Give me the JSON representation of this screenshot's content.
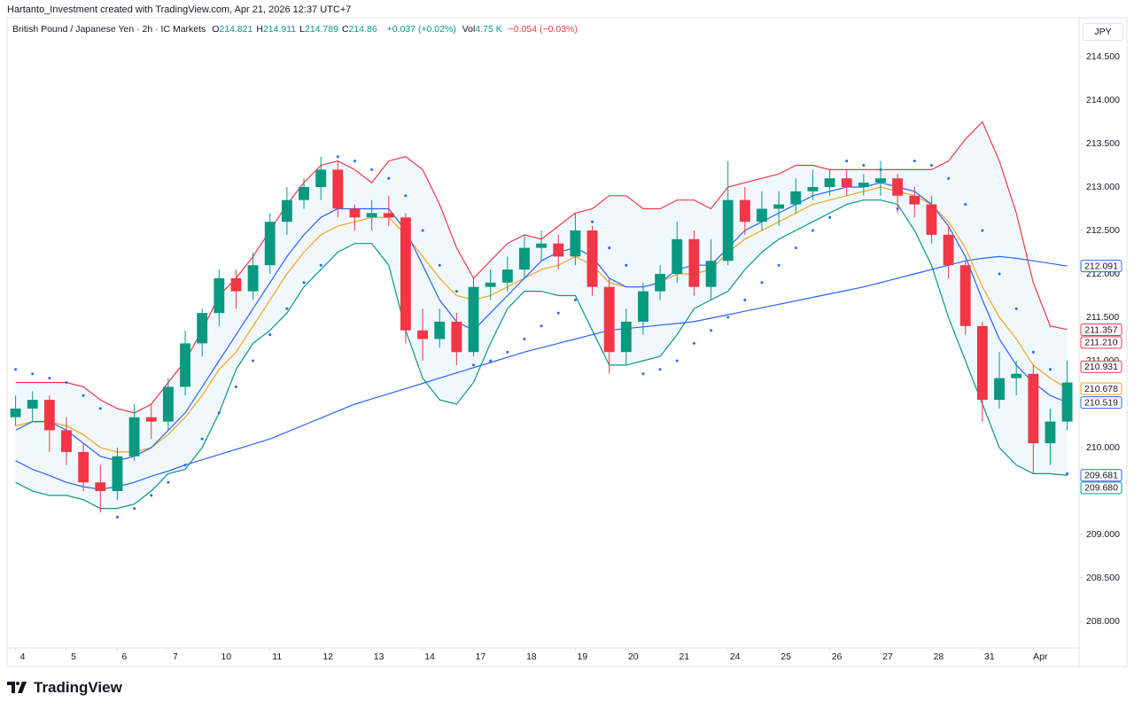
{
  "header": {
    "credit": "Hartanto_Investment created with TradingView.com, Apr 21, 2026 12:37 UTC+7",
    "symbol": "British Pound / Japanese Yen · 2h · IC Markets",
    "ohlc": [
      {
        "label": "O",
        "value": 214.821
      },
      {
        "label": "H",
        "value": 214.911
      },
      {
        "label": "L",
        "value": 214.789
      },
      {
        "label": "C",
        "value": 214.86
      }
    ],
    "change": "+0.037 (+0.02%)",
    "volume_label": "Vol",
    "volume": "4.75 K",
    "volume_change": "−0.054 (−0.03%)",
    "currency": "JPY",
    "brand": "TradingView"
  },
  "chart_data": {
    "type": "candlestick",
    "up_color": "#089981",
    "down_color": "#f23645",
    "band_fill": "#e3f2fd",
    "grid": false,
    "xlim": [
      -0.5,
      62.7
    ],
    "ylim": [
      207.5,
      214.7
    ],
    "xticks": [
      {
        "value": 0,
        "label": "4"
      },
      {
        "value": 3,
        "label": "5"
      },
      {
        "value": 6,
        "label": "6"
      },
      {
        "value": 9,
        "label": "7"
      },
      {
        "value": 12,
        "label": "10"
      },
      {
        "value": 15,
        "label": "11"
      },
      {
        "value": 18,
        "label": "12"
      },
      {
        "value": 21,
        "label": "13"
      },
      {
        "value": 24,
        "label": "14"
      },
      {
        "value": 27,
        "label": "17"
      },
      {
        "value": 30,
        "label": "18"
      },
      {
        "value": 33,
        "label": "19"
      },
      {
        "value": 36,
        "label": "20"
      },
      {
        "value": 39,
        "label": "21"
      },
      {
        "value": 42,
        "label": "24"
      },
      {
        "value": 45,
        "label": "25"
      },
      {
        "value": 48,
        "label": "26"
      },
      {
        "value": 51,
        "label": "27"
      },
      {
        "value": 54,
        "label": "28"
      },
      {
        "value": 57,
        "label": "31"
      },
      {
        "value": 60,
        "label": "Apr"
      }
    ],
    "yticks": [
      {
        "value": 208,
        "label": "208.000"
      },
      {
        "value": 208.5,
        "label": "208.500"
      },
      {
        "value": 209,
        "label": "209.000"
      },
      {
        "value": 209.5,
        "label": "209.500"
      },
      {
        "value": 210,
        "label": "210.000"
      },
      {
        "value": 210.5,
        "label": "210.500"
      },
      {
        "value": 211,
        "label": "211.000"
      },
      {
        "value": 211.5,
        "label": "211.500"
      },
      {
        "value": 212,
        "label": "212.000"
      },
      {
        "value": 212.5,
        "label": "212.500"
      },
      {
        "value": 213,
        "label": "213.000"
      },
      {
        "value": 213.5,
        "label": "213.500"
      },
      {
        "value": 214,
        "label": "214.000"
      },
      {
        "value": 214.5,
        "label": "214.500"
      }
    ],
    "x": [
      0,
      1,
      2,
      3,
      4,
      5,
      6,
      7,
      8,
      9,
      10,
      11,
      12,
      13,
      14,
      15,
      16,
      17,
      18,
      19,
      20,
      21,
      22,
      23,
      24,
      25,
      26,
      27,
      28,
      29,
      30,
      31,
      32,
      33,
      34,
      35,
      36,
      37,
      38,
      39,
      40,
      41,
      42,
      43,
      44,
      45,
      46,
      47,
      48,
      49,
      50,
      51,
      52,
      53,
      54,
      55,
      56,
      57,
      58,
      59,
      60,
      61,
      62
    ],
    "open": [
      210.35,
      210.45,
      210.55,
      210.2,
      209.95,
      209.6,
      209.5,
      209.9,
      210.35,
      210.3,
      210.7,
      211.2,
      211.55,
      211.95,
      211.8,
      212.1,
      212.6,
      212.85,
      213.0,
      213.2,
      212.75,
      212.65,
      212.7,
      212.65,
      211.35,
      211.25,
      211.45,
      211.1,
      211.85,
      211.9,
      212.05,
      212.3,
      212.35,
      212.2,
      212.5,
      211.85,
      211.1,
      211.45,
      211.8,
      212.0,
      212.4,
      211.85,
      212.15,
      212.85,
      212.6,
      212.75,
      212.8,
      212.95,
      213.0,
      213.1,
      213.0,
      213.05,
      213.1,
      212.9,
      212.8,
      212.45,
      212.1,
      211.4,
      210.55,
      210.8,
      210.85,
      210.05,
      210.3
    ],
    "high": [
      210.6,
      210.65,
      210.6,
      210.35,
      210.05,
      209.8,
      210.0,
      210.5,
      210.5,
      210.8,
      211.35,
      211.6,
      212.05,
      212.05,
      212.25,
      212.7,
      213.0,
      213.1,
      213.35,
      213.3,
      212.8,
      212.85,
      212.9,
      212.7,
      211.6,
      211.6,
      211.55,
      211.95,
      212.05,
      212.2,
      212.45,
      212.5,
      212.45,
      212.7,
      212.55,
      211.95,
      211.6,
      211.9,
      212.1,
      212.6,
      212.5,
      212.4,
      213.3,
      213.0,
      212.95,
      212.95,
      213.1,
      213.2,
      213.2,
      213.2,
      213.15,
      213.3,
      213.15,
      213.0,
      212.9,
      212.55,
      212.15,
      211.45,
      211.1,
      211.0,
      210.95,
      210.45,
      211.0
    ],
    "low": [
      210.25,
      210.3,
      209.95,
      209.8,
      209.5,
      209.25,
      209.4,
      209.85,
      210.1,
      210.2,
      210.6,
      211.05,
      211.4,
      211.6,
      211.7,
      212.0,
      212.45,
      212.75,
      212.85,
      212.65,
      212.5,
      212.5,
      212.55,
      211.2,
      211.0,
      211.15,
      210.95,
      211.05,
      211.7,
      211.8,
      211.95,
      212.15,
      212.05,
      212.1,
      211.75,
      210.85,
      210.95,
      211.3,
      211.7,
      211.9,
      211.75,
      211.7,
      212.1,
      212.45,
      212.5,
      212.55,
      212.7,
      212.85,
      212.9,
      212.9,
      212.9,
      212.9,
      212.7,
      212.65,
      212.35,
      211.95,
      211.3,
      210.3,
      210.45,
      210.6,
      209.7,
      209.8,
      210.2
    ],
    "close": [
      210.45,
      210.55,
      210.2,
      209.95,
      209.6,
      209.5,
      209.9,
      210.35,
      210.3,
      210.7,
      211.2,
      211.55,
      211.95,
      211.8,
      212.1,
      212.6,
      212.85,
      213.0,
      213.2,
      212.75,
      212.65,
      212.7,
      212.65,
      211.35,
      211.25,
      211.45,
      211.1,
      211.85,
      211.9,
      212.05,
      212.3,
      212.35,
      212.2,
      212.5,
      211.85,
      211.1,
      211.45,
      211.8,
      212.0,
      212.4,
      211.85,
      212.15,
      212.85,
      212.6,
      212.75,
      212.8,
      212.95,
      213.0,
      213.1,
      213.0,
      213.05,
      213.1,
      212.9,
      212.8,
      212.45,
      212.1,
      211.4,
      210.55,
      210.8,
      210.85,
      210.05,
      210.3,
      210.75
    ],
    "lines": [
      {
        "color": "#f23645",
        "values": [
          210.75,
          210.75,
          210.75,
          210.75,
          210.7,
          210.55,
          210.45,
          210.4,
          210.5,
          210.75,
          211.0,
          211.35,
          211.75,
          211.95,
          212.2,
          212.5,
          212.8,
          213.05,
          213.25,
          213.3,
          213.2,
          213.05,
          213.3,
          213.35,
          213.2,
          212.8,
          212.3,
          211.95,
          212.15,
          212.35,
          212.45,
          212.4,
          212.55,
          212.7,
          212.75,
          212.9,
          212.9,
          212.75,
          212.75,
          212.85,
          212.85,
          212.75,
          213.0,
          213.05,
          213.1,
          213.15,
          213.25,
          213.25,
          213.2,
          213.2,
          213.2,
          213.2,
          213.2,
          213.2,
          213.2,
          213.3,
          213.55,
          213.75,
          213.3,
          212.7,
          211.9,
          211.4,
          211.36
        ]
      },
      {
        "color": "#089981",
        "values": [
          209.6,
          209.5,
          209.45,
          209.45,
          209.4,
          209.3,
          209.3,
          209.35,
          209.5,
          209.7,
          209.75,
          210.0,
          210.4,
          210.9,
          211.2,
          211.35,
          211.55,
          211.85,
          212.05,
          212.25,
          212.35,
          212.35,
          212.1,
          211.35,
          210.8,
          210.55,
          210.5,
          210.75,
          211.2,
          211.6,
          211.8,
          211.8,
          211.75,
          211.75,
          211.35,
          210.95,
          210.95,
          211.0,
          211.05,
          211.3,
          211.6,
          211.7,
          211.8,
          212.05,
          212.25,
          212.4,
          212.5,
          212.6,
          212.7,
          212.8,
          212.85,
          212.85,
          212.8,
          212.5,
          212.1,
          211.5,
          211.0,
          210.5,
          210.0,
          209.8,
          209.7,
          209.7,
          209.68
        ]
      },
      {
        "color": "#2962ff",
        "values": [
          209.85,
          209.75,
          209.68,
          209.6,
          209.55,
          209.52,
          209.55,
          209.6,
          209.67,
          209.73,
          209.8,
          209.86,
          209.92,
          209.98,
          210.04,
          210.1,
          210.18,
          210.26,
          210.34,
          210.42,
          210.5,
          210.56,
          210.62,
          210.68,
          210.74,
          210.8,
          210.86,
          210.92,
          210.98,
          211.04,
          211.1,
          211.15,
          211.2,
          211.25,
          211.3,
          211.35,
          211.37,
          211.39,
          211.41,
          211.43,
          211.45,
          211.49,
          211.53,
          211.57,
          211.61,
          211.65,
          211.69,
          211.73,
          211.77,
          211.81,
          211.85,
          211.9,
          211.95,
          212.0,
          212.05,
          212.1,
          212.15,
          212.18,
          212.2,
          212.18,
          212.15,
          212.12,
          212.09
        ]
      },
      {
        "color": "#f7a21b",
        "values": [
          210.25,
          210.3,
          210.3,
          210.25,
          210.15,
          210.0,
          209.95,
          209.95,
          210.0,
          210.15,
          210.35,
          210.6,
          210.9,
          211.1,
          211.4,
          211.7,
          212.0,
          212.25,
          212.45,
          212.55,
          212.6,
          212.65,
          212.65,
          212.45,
          212.2,
          211.95,
          211.75,
          211.7,
          211.75,
          211.85,
          211.95,
          212.05,
          212.1,
          212.2,
          212.1,
          211.9,
          211.85,
          211.85,
          211.9,
          212.0,
          212.0,
          212.05,
          212.25,
          212.4,
          212.5,
          212.6,
          212.7,
          212.8,
          212.85,
          212.9,
          212.95,
          213.0,
          212.95,
          212.9,
          212.8,
          212.6,
          212.3,
          211.85,
          211.5,
          211.25,
          210.95,
          210.8,
          210.68
        ]
      },
      {
        "color": "#2962ff",
        "values": [
          210.2,
          210.3,
          210.3,
          210.2,
          210.05,
          209.9,
          209.85,
          209.9,
          210.0,
          210.2,
          210.4,
          210.7,
          211.0,
          211.3,
          211.6,
          211.9,
          212.2,
          212.45,
          212.65,
          212.75,
          212.75,
          212.75,
          212.75,
          212.5,
          212.1,
          211.7,
          211.45,
          211.35,
          211.55,
          211.75,
          211.95,
          212.15,
          212.25,
          212.3,
          212.2,
          211.95,
          211.85,
          211.85,
          211.9,
          212.05,
          212.1,
          212.1,
          212.3,
          212.5,
          212.6,
          212.7,
          212.8,
          212.9,
          212.95,
          213.0,
          213.0,
          213.05,
          213.0,
          212.95,
          212.8,
          212.55,
          212.2,
          211.7,
          211.25,
          210.95,
          210.75,
          210.6,
          210.52
        ]
      }
    ],
    "sar": {
      "color": "#2962ff",
      "values": [
        210.9,
        210.85,
        210.8,
        210.75,
        210.6,
        210.45,
        209.2,
        209.3,
        209.45,
        209.6,
        209.8,
        210.1,
        210.4,
        210.7,
        211.0,
        211.3,
        211.6,
        211.9,
        212.1,
        213.35,
        213.3,
        213.2,
        213.1,
        212.9,
        212.5,
        212.1,
        211.8,
        210.95,
        211.0,
        211.1,
        211.25,
        211.4,
        211.55,
        211.7,
        212.6,
        212.3,
        212.1,
        210.85,
        210.9,
        211.0,
        211.2,
        211.35,
        211.5,
        211.7,
        211.9,
        212.1,
        212.3,
        212.5,
        212.65,
        213.3,
        213.25,
        213.2,
        212.75,
        213.3,
        213.25,
        213.1,
        212.8,
        212.5,
        212.0,
        211.6,
        211.1,
        210.9,
        209.7
      ]
    },
    "price_labels": [
      {
        "value": 212.091,
        "color": "#2962ff"
      },
      {
        "value": 211.357,
        "color": "#f23645"
      },
      {
        "value": 211.21,
        "label": "211.210",
        "color": "#f23645"
      },
      {
        "value": 210.931,
        "color": "#f23645"
      },
      {
        "value": 210.678,
        "color": "#f7a21b"
      },
      {
        "value": 210.519,
        "color": "#2962ff"
      },
      {
        "value": 209.681,
        "color": "#2962ff"
      },
      {
        "value": 209.68,
        "label": "209.680",
        "color": "#089981"
      }
    ]
  }
}
